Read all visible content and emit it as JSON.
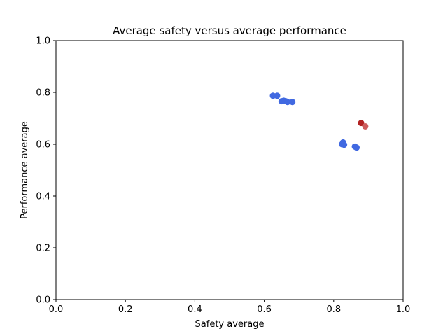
{
  "chart_data": {
    "type": "scatter",
    "title": "Average safety versus average performance",
    "xlabel": "Safety average",
    "ylabel": "Performance average",
    "xlim": [
      0.0,
      1.0
    ],
    "ylim": [
      0.0,
      1.0
    ],
    "xticks": [
      "0.0",
      "0.2",
      "0.4",
      "0.6",
      "0.8",
      "1.0"
    ],
    "yticks": [
      "0.0",
      "0.2",
      "0.4",
      "0.6",
      "0.8",
      "1.0"
    ],
    "grid": false,
    "legend": "none",
    "points": [
      {
        "x": 0.625,
        "y": 0.787,
        "color": "#4169e1"
      },
      {
        "x": 0.637,
        "y": 0.787,
        "color": "#4169e1"
      },
      {
        "x": 0.65,
        "y": 0.766,
        "color": "#4169e1"
      },
      {
        "x": 0.656,
        "y": 0.768,
        "color": "#4169e1"
      },
      {
        "x": 0.662,
        "y": 0.766,
        "color": "#4169e1"
      },
      {
        "x": 0.667,
        "y": 0.763,
        "color": "#4169e1"
      },
      {
        "x": 0.681,
        "y": 0.763,
        "color": "#4169e1"
      },
      {
        "x": 0.824,
        "y": 0.6,
        "color": "#4169e1"
      },
      {
        "x": 0.827,
        "y": 0.607,
        "color": "#4169e1"
      },
      {
        "x": 0.83,
        "y": 0.598,
        "color": "#4169e1"
      },
      {
        "x": 0.861,
        "y": 0.591,
        "color": "#4169e1"
      },
      {
        "x": 0.866,
        "y": 0.587,
        "color": "#4169e1"
      },
      {
        "x": 0.879,
        "y": 0.682,
        "color": "#b22222"
      },
      {
        "x": 0.891,
        "y": 0.669,
        "color": "#cd5c5c"
      }
    ]
  }
}
